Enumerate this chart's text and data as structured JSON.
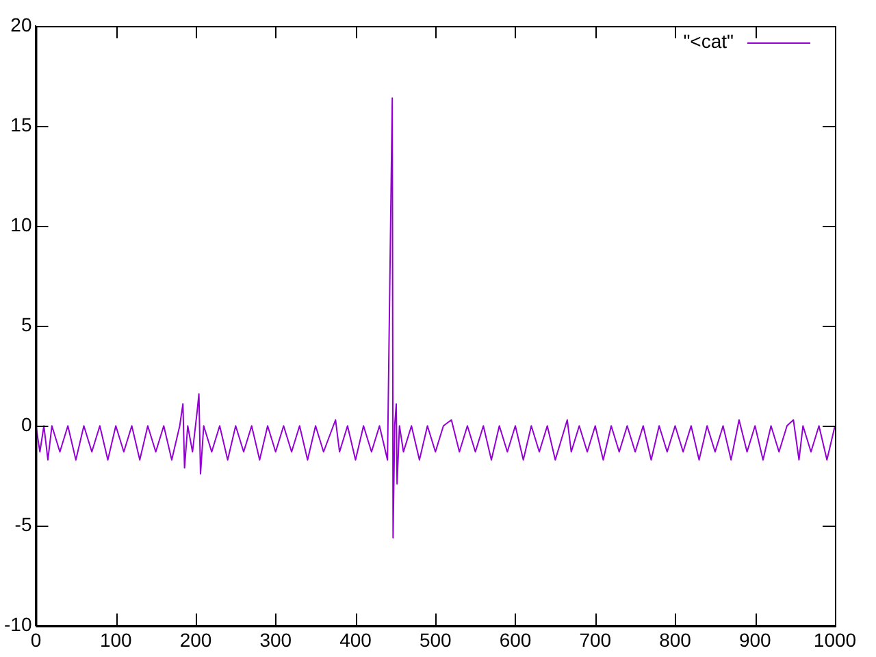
{
  "chart_data": {
    "type": "line",
    "legend": "top right",
    "grid": false,
    "marker": "none",
    "line_style": "solid",
    "xlim": [
      0,
      1000
    ],
    "xticks": [
      0,
      100,
      200,
      300,
      400,
      500,
      600,
      700,
      800,
      900,
      1000
    ],
    "ylim": [
      -10,
      20
    ],
    "yticks": [
      -10,
      -5,
      0,
      5,
      10,
      15,
      20
    ],
    "series": [
      {
        "name": "\"<cat\"",
        "color": "#9400d3",
        "x": [
          0,
          5,
          10,
          15,
          20,
          30,
          40,
          50,
          60,
          70,
          80,
          90,
          100,
          110,
          120,
          130,
          140,
          150,
          160,
          170,
          180,
          184,
          186,
          190,
          196,
          202,
          204,
          206,
          210,
          220,
          230,
          240,
          250,
          260,
          270,
          280,
          290,
          300,
          310,
          320,
          330,
          340,
          350,
          360,
          375,
          380,
          390,
          400,
          410,
          420,
          430,
          440,
          446,
          447,
          449,
          451,
          452,
          455,
          460,
          470,
          480,
          490,
          500,
          510,
          520,
          530,
          540,
          550,
          560,
          570,
          580,
          590,
          600,
          610,
          620,
          630,
          640,
          650,
          665,
          670,
          680,
          690,
          700,
          710,
          720,
          730,
          740,
          750,
          760,
          770,
          780,
          790,
          800,
          810,
          820,
          830,
          840,
          850,
          860,
          870,
          880,
          890,
          900,
          910,
          920,
          930,
          940,
          948,
          955,
          960,
          970,
          980,
          990,
          1000
        ],
        "values": [
          0,
          -1.3,
          0,
          -1.7,
          0,
          -1.3,
          0,
          -1.7,
          0,
          -1.3,
          0,
          -1.7,
          0,
          -1.3,
          0,
          -1.7,
          0,
          -1.3,
          0,
          -1.7,
          0,
          1.1,
          -2.1,
          0,
          -1.3,
          0.8,
          1.6,
          -2.4,
          0,
          -1.3,
          0,
          -1.7,
          0,
          -1.3,
          0,
          -1.7,
          0,
          -1.3,
          0,
          -1.3,
          0,
          -1.7,
          0,
          -1.3,
          0.3,
          -1.3,
          0,
          -1.7,
          0,
          -1.3,
          0,
          -1.7,
          16.4,
          -5.6,
          0,
          1.1,
          -2.9,
          0,
          -1.3,
          0,
          -1.7,
          0,
          -1.3,
          0,
          0.3,
          -1.3,
          0,
          -1.3,
          0,
          -1.7,
          0,
          -1.3,
          0,
          -1.7,
          0,
          -1.3,
          0,
          -1.7,
          0.3,
          -1.3,
          0,
          -1.3,
          0,
          -1.7,
          0,
          -1.3,
          0,
          -1.3,
          0,
          -1.7,
          0,
          -1.3,
          0,
          -1.3,
          0,
          -1.7,
          0,
          -1.3,
          0,
          -1.7,
          0.3,
          -1.3,
          0,
          -1.7,
          0,
          -1.3,
          0,
          0.3,
          -1.7,
          0,
          -1.3,
          0,
          -1.7,
          0
        ]
      }
    ]
  }
}
